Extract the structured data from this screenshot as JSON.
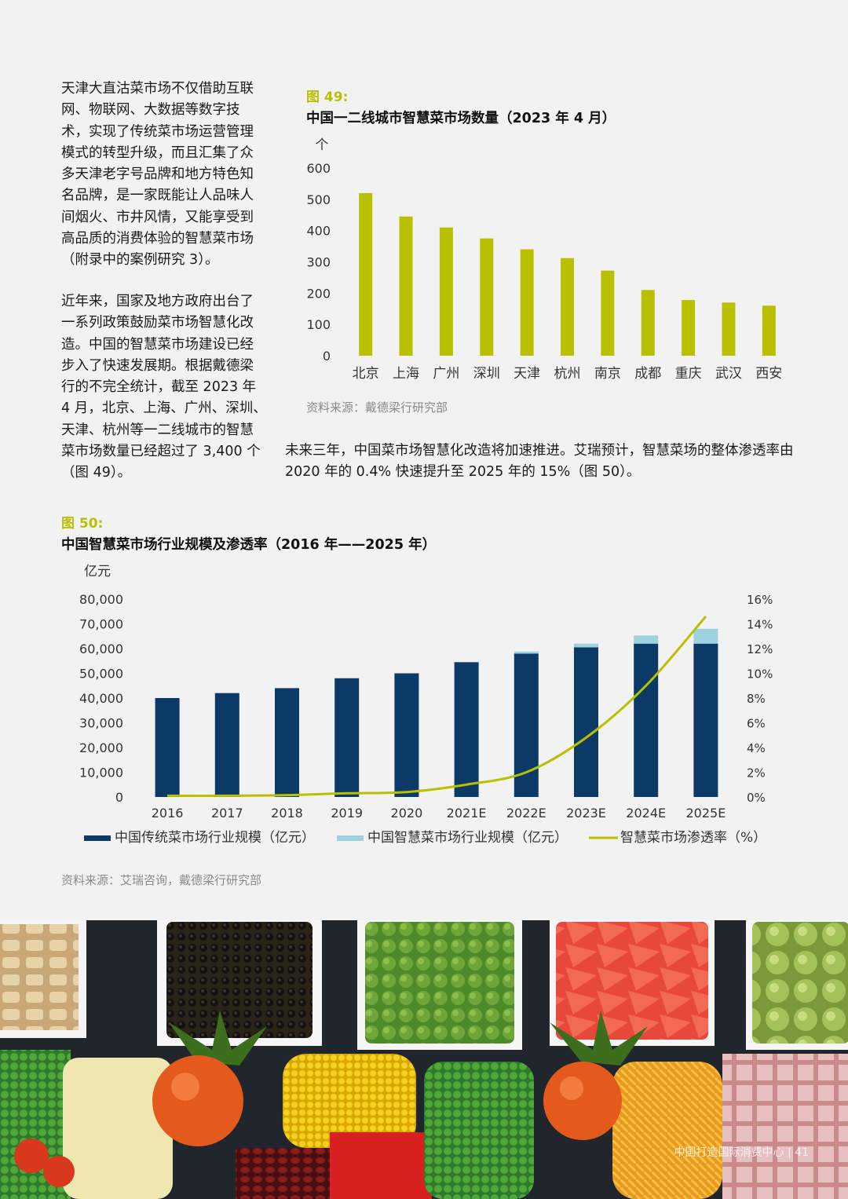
{
  "paragraphs": {
    "p1": "天津大直沽菜市场不仅借助互联网、物联网、大数据等数字技术，实现了传统菜市场运营管理模式的转型升级，而且汇集了众多天津老字号品牌和地方特色知名品牌，是一家既能让人品味人间烟火、市井风情，又能享受到高品质的消费体验的智慧菜市场（附录中的案例研究 3）。",
    "p2": "近年来，国家及地方政府出台了一系列政策鼓励菜市场智慧化改造。中国的智慧菜市场建设已经步入了快速发展期。根据戴德梁行的不完全统计，截至 2023 年 4 月，北京、上海、广州、深圳、天津、杭州等一二线城市的智慧菜市场数量已经超过了 3,400 个（图 49）。",
    "p3": "未来三年，中国菜市场智慧化改造将加速推进。艾瑞预计，智慧菜场的整体渗透率由 2020 年的 0.4% 快速提升至 2025 年的 15%（图 50）。"
  },
  "fig49": {
    "label": "图 49:",
    "title": "中国一二线城市智慧菜市场数量（2023 年 4 月）",
    "source": "资料来源：戴德梁行研究部"
  },
  "fig50": {
    "label": "图 50:",
    "title": "中国智慧菜市场行业规模及渗透率（2016 年——2025 年）",
    "source": "资料来源：艾瑞咨询，戴德梁行研究部"
  },
  "colors": {
    "fig49_bar": "#b8c000",
    "traditional": "#0c3a66",
    "smart": "#9ed2de",
    "rate_line": "#b8c000"
  },
  "chart_data": [
    {
      "type": "bar",
      "ylabel": "个",
      "ylim": [
        0,
        600
      ],
      "yticks": [
        "0",
        "100",
        "200",
        "300",
        "400",
        "500",
        "600"
      ],
      "categories": [
        "北京",
        "上海",
        "广州",
        "深圳",
        "天津",
        "杭州",
        "南京",
        "成都",
        "重庆",
        "武汉",
        "西安"
      ],
      "values": [
        520,
        445,
        410,
        375,
        340,
        312,
        272,
        210,
        178,
        170,
        160
      ],
      "grid": false
    },
    {
      "type": "bar",
      "ylabel": "亿元",
      "ylim": [
        0,
        80000
      ],
      "yticks": [
        "0",
        "10,000",
        "20,000",
        "30,000",
        "40,000",
        "50,000",
        "60,000",
        "70,000",
        "80,000"
      ],
      "y2lim": [
        0,
        16
      ],
      "y2ticks": [
        "0%",
        "2%",
        "4%",
        "6%",
        "8%",
        "10%",
        "12%",
        "14%",
        "16%"
      ],
      "categories": [
        "2016",
        "2017",
        "2018",
        "2019",
        "2020",
        "2021E",
        "2022E",
        "2023E",
        "2024E",
        "2025E"
      ],
      "series": [
        {
          "name": "中国传统菜市场行业规模（亿元）",
          "values": [
            40000,
            42000,
            44000,
            48000,
            50000,
            54500,
            58000,
            60500,
            62000,
            62000
          ]
        },
        {
          "name": "中国智慧菜市场行业规模（亿元）",
          "values": [
            0,
            0,
            0,
            0,
            0,
            0,
            800,
            1500,
            3300,
            6000
          ]
        },
        {
          "name": "智慧菜市场渗透率（%）",
          "type": "line",
          "axis": "right",
          "values": [
            0.1,
            0.1,
            0.15,
            0.3,
            0.4,
            1.0,
            2.0,
            4.8,
            9.0,
            14.6
          ]
        }
      ],
      "legend": "bottom",
      "grid": false
    }
  ],
  "footer": {
    "text": "中国打造国际消费中心",
    "page": "41"
  }
}
